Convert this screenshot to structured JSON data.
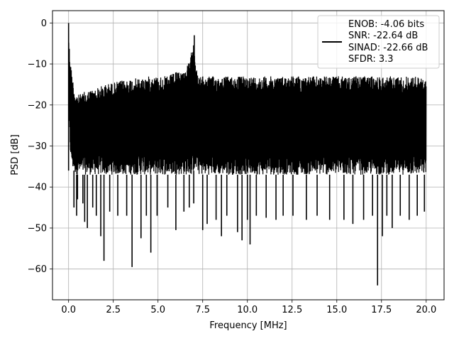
{
  "chart_data": {
    "type": "line",
    "title": "",
    "xlabel": "Frequency [MHz]",
    "ylabel": "PSD [dB]",
    "xlim": [
      -0.9,
      21.0
    ],
    "ylim": [
      -67.5,
      3.0
    ],
    "xticks": [
      0.0,
      2.5,
      5.0,
      7.5,
      10.0,
      12.5,
      15.0,
      17.5,
      20.0
    ],
    "xtick_labels": [
      "0.0",
      "2.5",
      "5.0",
      "7.5",
      "10.0",
      "12.5",
      "15.0",
      "17.5",
      "20.0"
    ],
    "yticks": [
      0,
      -10,
      -20,
      -30,
      -40,
      -50,
      -60
    ],
    "ytick_labels": [
      "0",
      "−10",
      "−20",
      "−30",
      "−40",
      "−50",
      "−60"
    ],
    "grid": true,
    "legend_position": "top-right",
    "legend_lines": [
      "ENOB: -4.06 bits",
      "SNR: -22.64 dB",
      "SINAD: -22.66 dB",
      "SFDR: 3.3"
    ],
    "series": [
      {
        "color": "#000000",
        "x": [
          0.0,
          0.02,
          0.05,
          0.1,
          0.15,
          0.2,
          0.25,
          0.3,
          0.4,
          0.6,
          1.0,
          1.5,
          2.0,
          2.5,
          3.0,
          3.5,
          4.0,
          4.5,
          5.0,
          5.5,
          6.0,
          6.5,
          6.8,
          6.9,
          7.0,
          7.05,
          7.1,
          7.2,
          7.3,
          7.5,
          8.0,
          8.5,
          9.0,
          9.5,
          10.0,
          10.5,
          11.0,
          11.5,
          12.0,
          12.5,
          13.0,
          13.5,
          14.0,
          14.5,
          15.0,
          15.5,
          16.0,
          16.5,
          17.0,
          17.5,
          18.0,
          18.5,
          19.0,
          19.5,
          20.0
        ],
        "upper": [
          0.0,
          -3.0,
          -6.0,
          -9.0,
          -11.0,
          -12.5,
          -14.0,
          -15.5,
          -17.0,
          -17.5,
          -16.5,
          -16.0,
          -15.0,
          -14.5,
          -14.0,
          -13.5,
          -13.5,
          -13.0,
          -13.0,
          -13.0,
          -12.0,
          -11.5,
          -9.0,
          -6.0,
          -3.0,
          -6.0,
          -9.0,
          -12.5,
          -13.0,
          -13.0,
          -13.0,
          -13.0,
          -13.0,
          -13.0,
          -13.0,
          -13.0,
          -13.0,
          -13.0,
          -13.0,
          -12.8,
          -13.0,
          -13.0,
          -13.0,
          -13.0,
          -13.0,
          -13.0,
          -13.0,
          -13.0,
          -13.0,
          -13.0,
          -13.0,
          -13.0,
          -13.0,
          -13.0,
          -14.0
        ],
        "lower": [
          -8.0,
          -20.0,
          -28.0,
          -32.0,
          -34.0,
          -35.0,
          -36.0,
          -36.0,
          -37.0,
          -37.0,
          -37.0,
          -37.0,
          -37.0,
          -37.0,
          -37.0,
          -37.0,
          -37.0,
          -37.0,
          -37.0,
          -37.0,
          -37.0,
          -37.0,
          -37.0,
          -37.0,
          -36.0,
          -36.0,
          -36.0,
          -36.0,
          -37.0,
          -37.0,
          -37.0,
          -37.0,
          -37.0,
          -37.0,
          -37.0,
          -37.0,
          -37.0,
          -37.0,
          -37.0,
          -37.0,
          -37.0,
          -37.0,
          -37.0,
          -37.0,
          -37.0,
          -37.0,
          -37.0,
          -37.0,
          -37.0,
          -37.0,
          -37.0,
          -37.0,
          -37.0,
          -37.0,
          -37.0
        ],
        "dips": [
          {
            "x": 0.3,
            "y": -45.0
          },
          {
            "x": 0.45,
            "y": -47.0
          },
          {
            "x": 0.5,
            "y": -43.0
          },
          {
            "x": 0.8,
            "y": -44.0
          },
          {
            "x": 0.9,
            "y": -48.5
          },
          {
            "x": 1.05,
            "y": -50.0
          },
          {
            "x": 1.35,
            "y": -45.0
          },
          {
            "x": 1.55,
            "y": -47.0
          },
          {
            "x": 1.8,
            "y": -52.0
          },
          {
            "x": 1.98,
            "y": -58.0
          },
          {
            "x": 2.3,
            "y": -46.0
          },
          {
            "x": 2.75,
            "y": -47.0
          },
          {
            "x": 3.25,
            "y": -47.0
          },
          {
            "x": 3.55,
            "y": -59.5
          },
          {
            "x": 4.05,
            "y": -52.5
          },
          {
            "x": 4.35,
            "y": -47.0
          },
          {
            "x": 4.6,
            "y": -56.0
          },
          {
            "x": 4.95,
            "y": -47.0
          },
          {
            "x": 5.55,
            "y": -45.0
          },
          {
            "x": 6.0,
            "y": -50.5
          },
          {
            "x": 6.45,
            "y": -46.0
          },
          {
            "x": 6.75,
            "y": -45.0
          },
          {
            "x": 7.0,
            "y": -44.0
          },
          {
            "x": 7.5,
            "y": -50.5
          },
          {
            "x": 7.75,
            "y": -49.0
          },
          {
            "x": 8.25,
            "y": -48.0
          },
          {
            "x": 8.55,
            "y": -52.0
          },
          {
            "x": 8.85,
            "y": -47.0
          },
          {
            "x": 9.45,
            "y": -51.0
          },
          {
            "x": 9.7,
            "y": -53.0
          },
          {
            "x": 10.0,
            "y": -48.0
          },
          {
            "x": 10.15,
            "y": -54.0
          },
          {
            "x": 10.5,
            "y": -47.0
          },
          {
            "x": 11.05,
            "y": -47.5
          },
          {
            "x": 11.6,
            "y": -48.0
          },
          {
            "x": 12.0,
            "y": -47.0
          },
          {
            "x": 12.55,
            "y": -47.0
          },
          {
            "x": 13.3,
            "y": -48.0
          },
          {
            "x": 13.9,
            "y": -47.0
          },
          {
            "x": 14.6,
            "y": -48.0
          },
          {
            "x": 15.4,
            "y": -48.0
          },
          {
            "x": 15.9,
            "y": -49.0
          },
          {
            "x": 16.5,
            "y": -48.0
          },
          {
            "x": 17.0,
            "y": -47.0
          },
          {
            "x": 17.28,
            "y": -64.0
          },
          {
            "x": 17.55,
            "y": -52.0
          },
          {
            "x": 17.8,
            "y": -47.0
          },
          {
            "x": 18.1,
            "y": -50.0
          },
          {
            "x": 18.55,
            "y": -47.0
          },
          {
            "x": 19.05,
            "y": -48.0
          },
          {
            "x": 19.5,
            "y": -47.0
          },
          {
            "x": 19.9,
            "y": -46.0
          }
        ]
      }
    ]
  }
}
